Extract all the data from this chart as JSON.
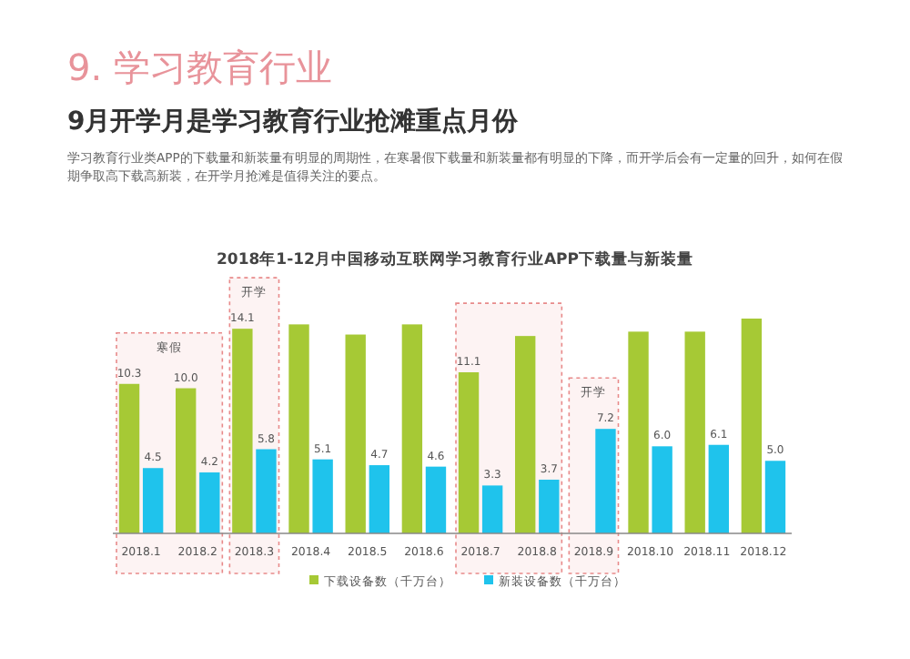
{
  "chart_data": {
    "type": "bar",
    "title": "2018年1-12月中国移动互联网学习教育行业APP下载量与新装量",
    "subtitle": "9月开学月是学习教育行业抢滩重点月份",
    "annotations": [
      "9. 学习教育行业",
      "学习教育行业类APP的下载量和新装量有明显的周期性，在寒暑假下载量和新装量都有明显的下降，而开学后会有一定量的回升，如何在假期争取高下载高新装，在开学月抢滩是值得关注的要点。"
    ],
    "bands": [
      {
        "axis": "x",
        "from": "2018.1",
        "to": "2018.2",
        "label": "寒假",
        "color": "#e88a8a"
      },
      {
        "axis": "x",
        "from": "2018.3",
        "to": "2018.3",
        "label": "开学",
        "color": "#e88a8a"
      },
      {
        "axis": "x",
        "from": "2018.7",
        "to": "2018.8",
        "color": "#e88a8a"
      },
      {
        "axis": "x",
        "from": "2018.9",
        "to": "2018.9",
        "label": "开学",
        "color": "#e88a8a"
      }
    ],
    "categories": [
      "2018.1",
      "2018.2",
      "2018.3",
      "2018.4",
      "2018.5",
      "2018.6",
      "2018.7",
      "2018.8",
      "2018.9",
      "2018.10",
      "2018.11",
      "2018.12"
    ],
    "series": [
      {
        "name": "下载设备数（千万台）",
        "color": "#a6c935",
        "values": [
          10.3,
          10.0,
          14.1,
          14.4,
          13.7,
          14.4,
          11.1,
          13.6,
          null,
          13.9,
          13.9,
          14.8
        ],
        "value_labels": [
          "10.3",
          "10.0",
          "14.1",
          null,
          null,
          null,
          "11.1",
          null,
          null,
          null,
          null,
          null
        ]
      },
      {
        "name": "新装设备数（千万台）",
        "color": "#1fc3ec",
        "values": [
          4.5,
          4.2,
          5.8,
          5.1,
          4.7,
          4.6,
          3.3,
          3.7,
          7.2,
          6.0,
          6.1,
          5.0
        ],
        "value_labels": [
          "4.5",
          "4.2",
          "5.8",
          "5.1",
          "4.7",
          "4.6",
          "3.3",
          "3.7",
          "7.2",
          "6.0",
          "6.1",
          "5.0"
        ]
      }
    ],
    "legend": "bottom"
  }
}
